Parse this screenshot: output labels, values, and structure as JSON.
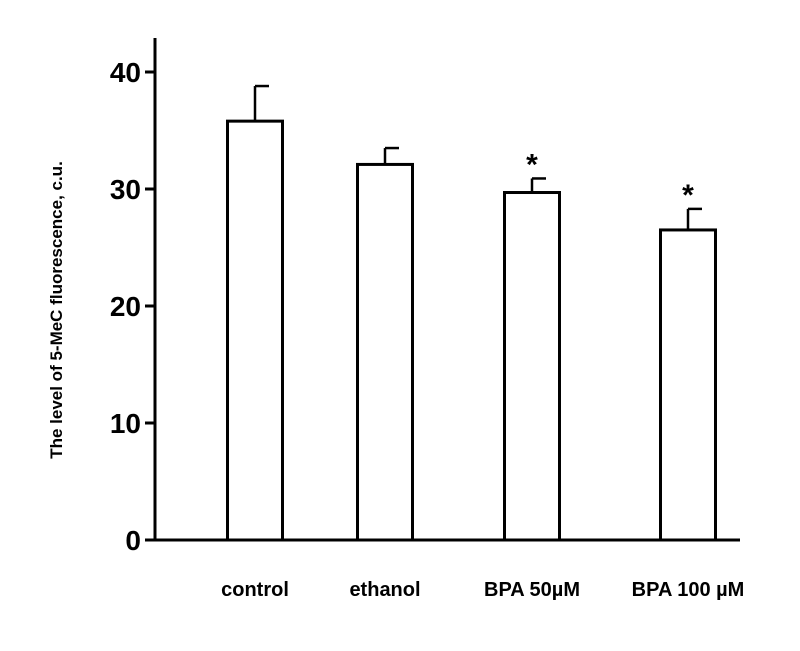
{
  "chart_data": {
    "type": "bar",
    "title": "",
    "ylabel": "The level of 5-MeC fluorescence, c.u.",
    "xlabel": "",
    "categories": [
      "control",
      "ethanol",
      "BPA 50µM",
      "BPA 100 µM"
    ],
    "values": [
      35.8,
      32.1,
      29.7,
      26.5
    ],
    "error_upper": [
      3.0,
      1.4,
      1.2,
      1.8
    ],
    "annotations": [
      "",
      "",
      "*",
      "*"
    ],
    "yticks": [
      0,
      10,
      20,
      30,
      40
    ],
    "ylim": [
      0,
      43
    ],
    "grid": false,
    "bar_fill": "#ffffff",
    "bar_stroke": "#000000"
  }
}
